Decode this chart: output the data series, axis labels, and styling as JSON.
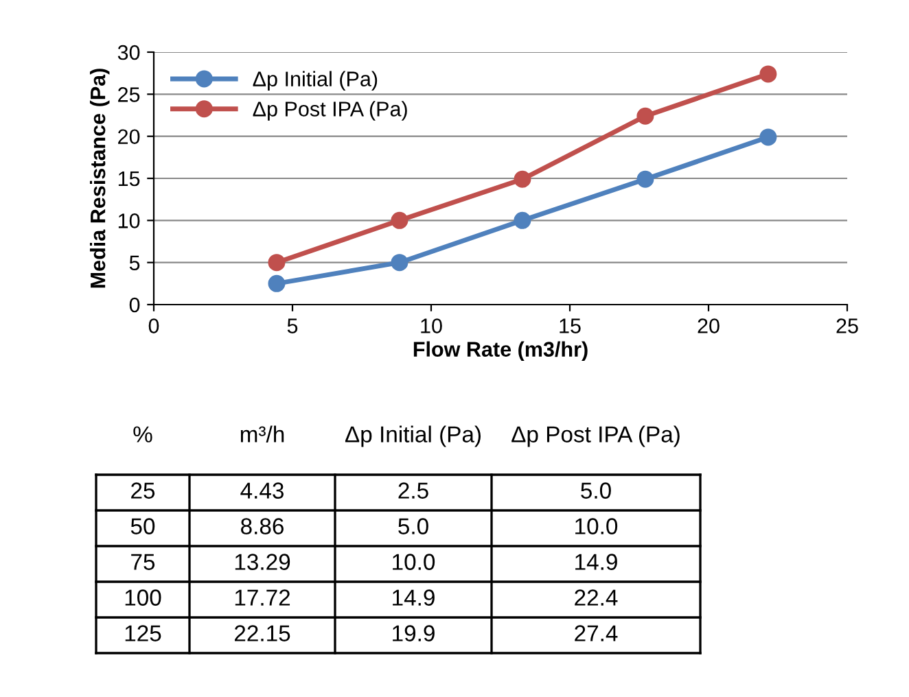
{
  "chart_data": {
    "type": "line",
    "xlabel": "Flow Rate (m3/hr)",
    "ylabel": "Media Resistance (Pa)",
    "x": [
      4.43,
      8.86,
      13.29,
      17.72,
      22.15
    ],
    "series": [
      {
        "name": "Δp Initial (Pa)",
        "color": "#4f81bd",
        "values": [
          2.5,
          5.0,
          10.0,
          14.9,
          19.9
        ]
      },
      {
        "name": "Δp Post IPA (Pa)",
        "color": "#c0504d",
        "values": [
          5.0,
          10.0,
          14.9,
          22.4,
          27.4
        ]
      }
    ],
    "xlim": [
      0,
      25
    ],
    "xticks": [
      0,
      5,
      10,
      15,
      20,
      25
    ],
    "ylim": [
      0,
      30
    ],
    "yticks": [
      0,
      5,
      10,
      15,
      20,
      25,
      30
    ],
    "grid": "y",
    "legend": "top left",
    "marker": "circle",
    "line_style": "solid",
    "annotations": [
      "%",
      "m³/h",
      "Δp Initial (Pa)",
      "Δp Post IPA (Pa)",
      "25",
      "4.43",
      "2.5",
      "5.0",
      "50",
      "8.86",
      "5.0",
      "10.0",
      "75",
      "13.29",
      "10.0",
      "14.9",
      "100",
      "17.72",
      "14.9",
      "22.4",
      "125",
      "22.15",
      "19.9",
      "27.4"
    ]
  }
}
